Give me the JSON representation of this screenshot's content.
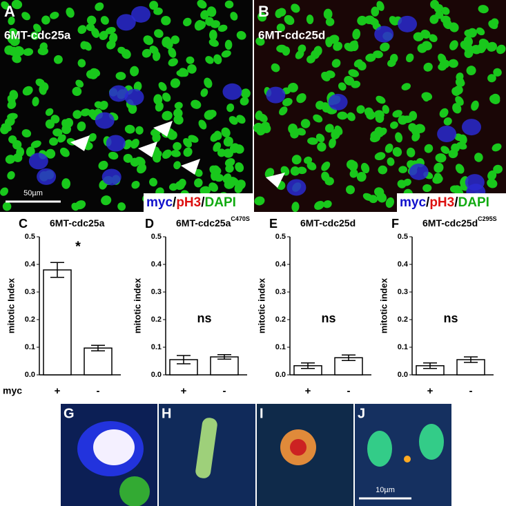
{
  "panels": {
    "A": {
      "letter": "A",
      "label": "6MT-cdc25a",
      "scale_bar": "50µm"
    },
    "B": {
      "letter": "B",
      "label": "6MT-cdc25d"
    },
    "G": {
      "letter": "G"
    },
    "H": {
      "letter": "H"
    },
    "I": {
      "letter": "I"
    },
    "J": {
      "letter": "J",
      "scale_bar": "10µm"
    }
  },
  "stain_legend": {
    "myc": "myc",
    "sep": "/",
    "pH3": "pH3",
    "DAPI": "DAPI"
  },
  "chart_data": [
    {
      "type": "bar",
      "letter": "C",
      "title": "6MT-cdc25a",
      "ylabel": "mitotic Index",
      "xlabel": "myc",
      "categories": [
        "+",
        "-"
      ],
      "values": [
        0.38,
        0.097
      ],
      "errors": [
        0.027,
        0.01
      ],
      "annotation": "*",
      "ylim": [
        0,
        0.5
      ],
      "yticks": [
        {
          "value": 0,
          "label": "0.0"
        },
        0.1,
        0.2,
        0.3,
        0.4,
        0.5
      ],
      "color": "#ffffff"
    },
    {
      "type": "bar",
      "letter": "D",
      "title": "6MT-cdc25a",
      "title_sup": "C470S",
      "ylabel": "mitotic index",
      "categories": [
        "+",
        "-"
      ],
      "values": [
        0.055,
        0.065
      ],
      "errors": [
        0.015,
        0.008
      ],
      "annotation": "ns",
      "ylim": [
        0,
        0.5
      ],
      "yticks": [
        {
          "value": 0,
          "label": "0.0"
        },
        0.1,
        0.2,
        0.3,
        0.4,
        0.5
      ],
      "color": "#ffffff"
    },
    {
      "type": "bar",
      "letter": "E",
      "title": "6MT-cdc25d",
      "ylabel": "mitotic index",
      "categories": [
        "+",
        "-"
      ],
      "values": [
        0.033,
        0.062
      ],
      "errors": [
        0.01,
        0.01
      ],
      "annotation": "ns",
      "ylim": [
        0,
        0.5
      ],
      "yticks": [
        {
          "value": 0,
          "label": "0.0"
        },
        0.1,
        0.2,
        0.3,
        0.4,
        0.5
      ],
      "color": "#ffffff"
    },
    {
      "type": "bar",
      "letter": "F",
      "title": "6MT-cdc25d",
      "title_sup": "C295S",
      "ylabel": "mitotic index",
      "categories": [
        "+",
        "-"
      ],
      "values": [
        0.033,
        0.055
      ],
      "errors": [
        0.01,
        0.01
      ],
      "annotation": "ns",
      "ylim": [
        0,
        0.5
      ],
      "yticks": [
        {
          "value": 0,
          "label": "0.0"
        },
        0.1,
        0.2,
        0.3,
        0.4,
        0.5
      ],
      "color": "#ffffff"
    }
  ]
}
